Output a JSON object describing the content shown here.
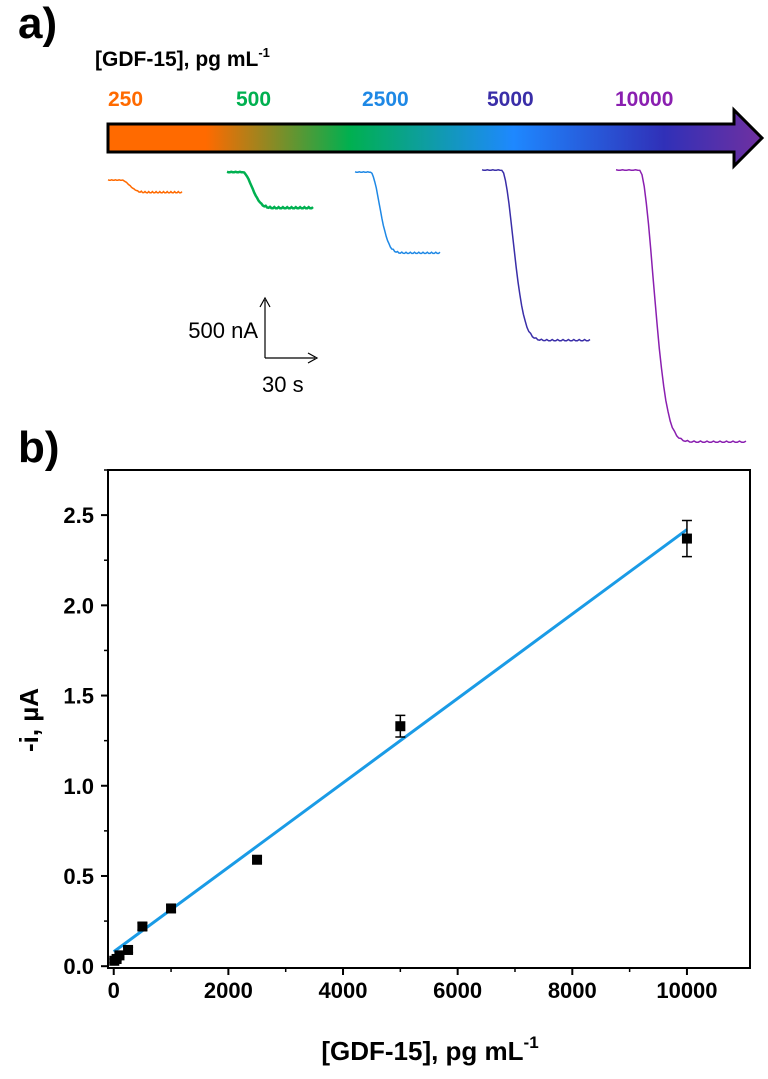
{
  "chart_data": [
    {
      "panel_label": "a)",
      "type": "line",
      "title": "[GDF-15], pg mL-1",
      "title_main": "[GDF-15], pg mL",
      "title_sup": "-1",
      "series": [
        {
          "name": "250",
          "color": "#ff6a00",
          "drop_nA": 130
        },
        {
          "name": "500",
          "color": "#00b050",
          "drop_nA": 380
        },
        {
          "name": "2500",
          "color": "#1e88e5",
          "drop_nA": 860
        },
        {
          "name": "5000",
          "color": "#3a2ea8",
          "drop_nA": 1810
        },
        {
          "name": "10000",
          "color": "#8a1fb0",
          "drop_nA": 2890
        }
      ],
      "scale_bar": {
        "current": "500 nA",
        "time": "30 s"
      }
    },
    {
      "panel_label": "b)",
      "type": "scatter",
      "xlabel": "[GDF-15], pg mL",
      "xlabel_sup": "-1",
      "ylabel": "-i, µA",
      "xlim": [
        -100,
        11100
      ],
      "ylim": [
        -0.01,
        2.75
      ],
      "xticks": [
        0,
        2000,
        4000,
        6000,
        8000,
        10000
      ],
      "yticks": [
        0.0,
        0.5,
        1.0,
        1.5,
        2.0,
        2.5
      ],
      "xtick_labels": [
        "0",
        "2000",
        "4000",
        "6000",
        "8000",
        "10000"
      ],
      "ytick_labels": [
        "0.0",
        "0.5",
        "1.0",
        "1.5",
        "2.0",
        "2.5"
      ],
      "points": [
        {
          "x": 10,
          "y": 0.03,
          "err": 0.01
        },
        {
          "x": 50,
          "y": 0.04,
          "err": 0.01
        },
        {
          "x": 100,
          "y": 0.06,
          "err": 0.01
        },
        {
          "x": 250,
          "y": 0.09,
          "err": 0.015
        },
        {
          "x": 500,
          "y": 0.22,
          "err": 0.02
        },
        {
          "x": 1000,
          "y": 0.32,
          "err": 0.02
        },
        {
          "x": 2500,
          "y": 0.59,
          "err": 0.015
        },
        {
          "x": 5000,
          "y": 1.33,
          "err": 0.06
        },
        {
          "x": 10000,
          "y": 2.37,
          "err": 0.1
        }
      ],
      "fit_line": {
        "x": [
          0,
          10000
        ],
        "y": [
          0.08,
          2.42
        ],
        "color": "#1a9be6"
      },
      "marker_color": "#000000",
      "grid": false
    }
  ]
}
